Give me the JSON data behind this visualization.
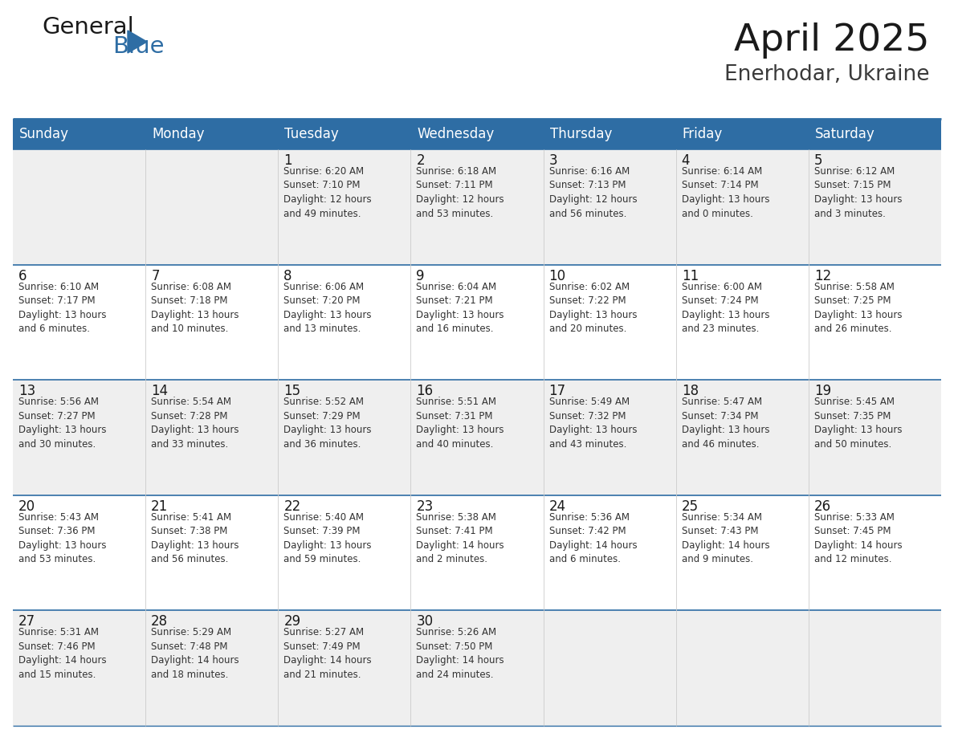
{
  "title": "April 2025",
  "subtitle": "Enerhodar, Ukraine",
  "header_bg": "#2E6DA4",
  "header_text_color": "#FFFFFF",
  "cell_bg_odd": "#EFEFEF",
  "cell_bg_even": "#FFFFFF",
  "border_color": "#2E6DA4",
  "day_names": [
    "Sunday",
    "Monday",
    "Tuesday",
    "Wednesday",
    "Thursday",
    "Friday",
    "Saturday"
  ],
  "weeks": [
    [
      {
        "day": "",
        "info": ""
      },
      {
        "day": "",
        "info": ""
      },
      {
        "day": "1",
        "info": "Sunrise: 6:20 AM\nSunset: 7:10 PM\nDaylight: 12 hours\nand 49 minutes."
      },
      {
        "day": "2",
        "info": "Sunrise: 6:18 AM\nSunset: 7:11 PM\nDaylight: 12 hours\nand 53 minutes."
      },
      {
        "day": "3",
        "info": "Sunrise: 6:16 AM\nSunset: 7:13 PM\nDaylight: 12 hours\nand 56 minutes."
      },
      {
        "day": "4",
        "info": "Sunrise: 6:14 AM\nSunset: 7:14 PM\nDaylight: 13 hours\nand 0 minutes."
      },
      {
        "day": "5",
        "info": "Sunrise: 6:12 AM\nSunset: 7:15 PM\nDaylight: 13 hours\nand 3 minutes."
      }
    ],
    [
      {
        "day": "6",
        "info": "Sunrise: 6:10 AM\nSunset: 7:17 PM\nDaylight: 13 hours\nand 6 minutes."
      },
      {
        "day": "7",
        "info": "Sunrise: 6:08 AM\nSunset: 7:18 PM\nDaylight: 13 hours\nand 10 minutes."
      },
      {
        "day": "8",
        "info": "Sunrise: 6:06 AM\nSunset: 7:20 PM\nDaylight: 13 hours\nand 13 minutes."
      },
      {
        "day": "9",
        "info": "Sunrise: 6:04 AM\nSunset: 7:21 PM\nDaylight: 13 hours\nand 16 minutes."
      },
      {
        "day": "10",
        "info": "Sunrise: 6:02 AM\nSunset: 7:22 PM\nDaylight: 13 hours\nand 20 minutes."
      },
      {
        "day": "11",
        "info": "Sunrise: 6:00 AM\nSunset: 7:24 PM\nDaylight: 13 hours\nand 23 minutes."
      },
      {
        "day": "12",
        "info": "Sunrise: 5:58 AM\nSunset: 7:25 PM\nDaylight: 13 hours\nand 26 minutes."
      }
    ],
    [
      {
        "day": "13",
        "info": "Sunrise: 5:56 AM\nSunset: 7:27 PM\nDaylight: 13 hours\nand 30 minutes."
      },
      {
        "day": "14",
        "info": "Sunrise: 5:54 AM\nSunset: 7:28 PM\nDaylight: 13 hours\nand 33 minutes."
      },
      {
        "day": "15",
        "info": "Sunrise: 5:52 AM\nSunset: 7:29 PM\nDaylight: 13 hours\nand 36 minutes."
      },
      {
        "day": "16",
        "info": "Sunrise: 5:51 AM\nSunset: 7:31 PM\nDaylight: 13 hours\nand 40 minutes."
      },
      {
        "day": "17",
        "info": "Sunrise: 5:49 AM\nSunset: 7:32 PM\nDaylight: 13 hours\nand 43 minutes."
      },
      {
        "day": "18",
        "info": "Sunrise: 5:47 AM\nSunset: 7:34 PM\nDaylight: 13 hours\nand 46 minutes."
      },
      {
        "day": "19",
        "info": "Sunrise: 5:45 AM\nSunset: 7:35 PM\nDaylight: 13 hours\nand 50 minutes."
      }
    ],
    [
      {
        "day": "20",
        "info": "Sunrise: 5:43 AM\nSunset: 7:36 PM\nDaylight: 13 hours\nand 53 minutes."
      },
      {
        "day": "21",
        "info": "Sunrise: 5:41 AM\nSunset: 7:38 PM\nDaylight: 13 hours\nand 56 minutes."
      },
      {
        "day": "22",
        "info": "Sunrise: 5:40 AM\nSunset: 7:39 PM\nDaylight: 13 hours\nand 59 minutes."
      },
      {
        "day": "23",
        "info": "Sunrise: 5:38 AM\nSunset: 7:41 PM\nDaylight: 14 hours\nand 2 minutes."
      },
      {
        "day": "24",
        "info": "Sunrise: 5:36 AM\nSunset: 7:42 PM\nDaylight: 14 hours\nand 6 minutes."
      },
      {
        "day": "25",
        "info": "Sunrise: 5:34 AM\nSunset: 7:43 PM\nDaylight: 14 hours\nand 9 minutes."
      },
      {
        "day": "26",
        "info": "Sunrise: 5:33 AM\nSunset: 7:45 PM\nDaylight: 14 hours\nand 12 minutes."
      }
    ],
    [
      {
        "day": "27",
        "info": "Sunrise: 5:31 AM\nSunset: 7:46 PM\nDaylight: 14 hours\nand 15 minutes."
      },
      {
        "day": "28",
        "info": "Sunrise: 5:29 AM\nSunset: 7:48 PM\nDaylight: 14 hours\nand 18 minutes."
      },
      {
        "day": "29",
        "info": "Sunrise: 5:27 AM\nSunset: 7:49 PM\nDaylight: 14 hours\nand 21 minutes."
      },
      {
        "day": "30",
        "info": "Sunrise: 5:26 AM\nSunset: 7:50 PM\nDaylight: 14 hours\nand 24 minutes."
      },
      {
        "day": "",
        "info": ""
      },
      {
        "day": "",
        "info": ""
      },
      {
        "day": "",
        "info": ""
      }
    ]
  ]
}
